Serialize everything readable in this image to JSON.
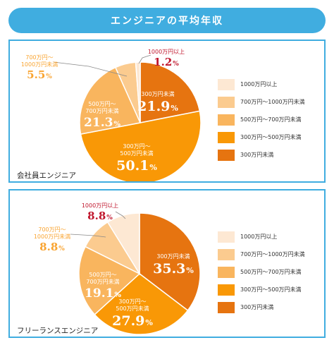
{
  "page_title": "エンジニアの平均年収",
  "colors": {
    "accent": "#40ade0",
    "slices": [
      "#e67410",
      "#f99806",
      "#f9b55e",
      "#fbcb8f",
      "#fde8d3"
    ],
    "annotation_dark": "#c0162c"
  },
  "chart_data": [
    {
      "type": "pie",
      "caption": "会社員エンジニア",
      "categories": [
        "300万円未満",
        "300万円～500万円未満",
        "500万円～700万円未満",
        "700万円～1000万円未満",
        "1000万円以上"
      ],
      "values": [
        21.9,
        50.1,
        21.3,
        5.5,
        1.2
      ],
      "slice_labels": [
        {
          "lines": [
            "300万円未満"
          ],
          "value": "21.9",
          "unit": "%"
        },
        {
          "lines": [
            "300万円～",
            "500万円未満"
          ],
          "value": "50.1",
          "unit": "%"
        },
        {
          "lines": [
            "500万円～",
            "700万円未満"
          ],
          "value": "21.3",
          "unit": "%"
        },
        {
          "lines": [
            "700万円～",
            "1000万円未満"
          ],
          "value": "5.5",
          "unit": "%"
        },
        {
          "lines": [
            "1000万円以上"
          ],
          "value": "1.2",
          "unit": "%"
        }
      ],
      "legend": {
        "placement": "right",
        "items": [
          "1000万円以上",
          "700万円～1000万円未満",
          "500万円～700万円未満",
          "300万円～500万円未満",
          "300万円未満"
        ]
      }
    },
    {
      "type": "pie",
      "caption": "フリーランスエンジニア",
      "categories": [
        "300万円未満",
        "300万円～500万円未満",
        "500万円～700万円未満",
        "700万円～1000万円未満",
        "1000万円以上"
      ],
      "values": [
        35.3,
        27.9,
        19.1,
        8.8,
        8.8
      ],
      "slice_labels": [
        {
          "lines": [
            "300万円未満"
          ],
          "value": "35.3",
          "unit": "%"
        },
        {
          "lines": [
            "300万円～",
            "500万円未満"
          ],
          "value": "27.9",
          "unit": "%"
        },
        {
          "lines": [
            "500万円～",
            "700万円未満"
          ],
          "value": "19.1",
          "unit": "%"
        },
        {
          "lines": [
            "700万円～",
            "1000万円未満"
          ],
          "value": "8.8",
          "unit": "%"
        },
        {
          "lines": [
            "1000万円以上"
          ],
          "value": "8.8",
          "unit": "%"
        }
      ],
      "legend": {
        "placement": "right",
        "items": [
          "1000万円以上",
          "700万円～1000万円未満",
          "500万円～700万円未満",
          "300万円～500万円未満",
          "300万円未満"
        ]
      }
    }
  ]
}
